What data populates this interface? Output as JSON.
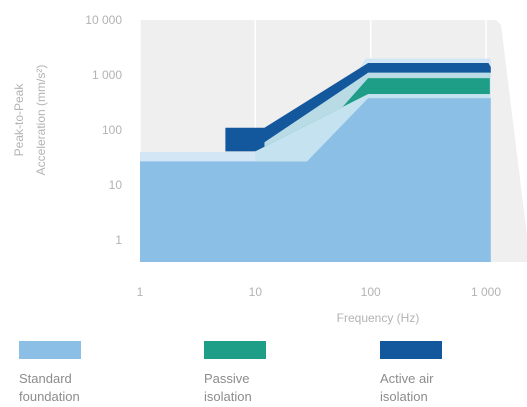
{
  "chart_data": {
    "type": "area",
    "x_scale": "log",
    "y_scale": "log",
    "xlim": [
      1,
      1000
    ],
    "ylim": [
      0.4,
      10000
    ],
    "xticks": [
      1,
      10,
      100,
      1000
    ],
    "xtick_labels": [
      "1",
      "10",
      "100",
      "1 000"
    ],
    "yticks": [
      1,
      10,
      100,
      1000,
      10000
    ],
    "ytick_labels": [
      "1",
      "10",
      "100",
      "1 000",
      "10 000"
    ],
    "xlabel": "Frequency (Hz)",
    "ylabel": "Peak-to-Peak Acceleration (mm/s²)",
    "grid": true,
    "series": [
      {
        "name": "Standard foundation",
        "color": "#8cbfe6",
        "points": [
          [
            1,
            27
          ],
          [
            28,
            27
          ],
          [
            95,
            380
          ],
          [
            1100,
            380
          ]
        ]
      },
      {
        "name": "Passive isolation",
        "color": "#1f9e87",
        "points": [
          [
            10,
            41
          ],
          [
            26,
            41
          ],
          [
            95,
            880
          ],
          [
            1080,
            880
          ],
          [
            1080,
            450
          ],
          [
            95,
            450
          ],
          [
            10,
            41
          ]
        ]
      },
      {
        "name": "Active air isolation",
        "color": "#13579c",
        "points": [
          [
            5.5,
            41
          ],
          [
            5.5,
            110
          ],
          [
            12,
            110
          ],
          [
            95,
            1650
          ],
          [
            1050,
            1650
          ],
          [
            1100,
            1400
          ],
          [
            1100,
            1100
          ],
          [
            95,
            1100
          ],
          [
            12,
            41
          ]
        ]
      }
    ]
  },
  "legend": {
    "items": [
      {
        "line1": "Standard",
        "line2": "foundation",
        "color": "#8cbfe6"
      },
      {
        "line1": "Passive",
        "line2": "isolation",
        "color": "#1f9e87"
      },
      {
        "line1": "Active air",
        "line2": "isolation",
        "color": "#13579c"
      }
    ]
  }
}
